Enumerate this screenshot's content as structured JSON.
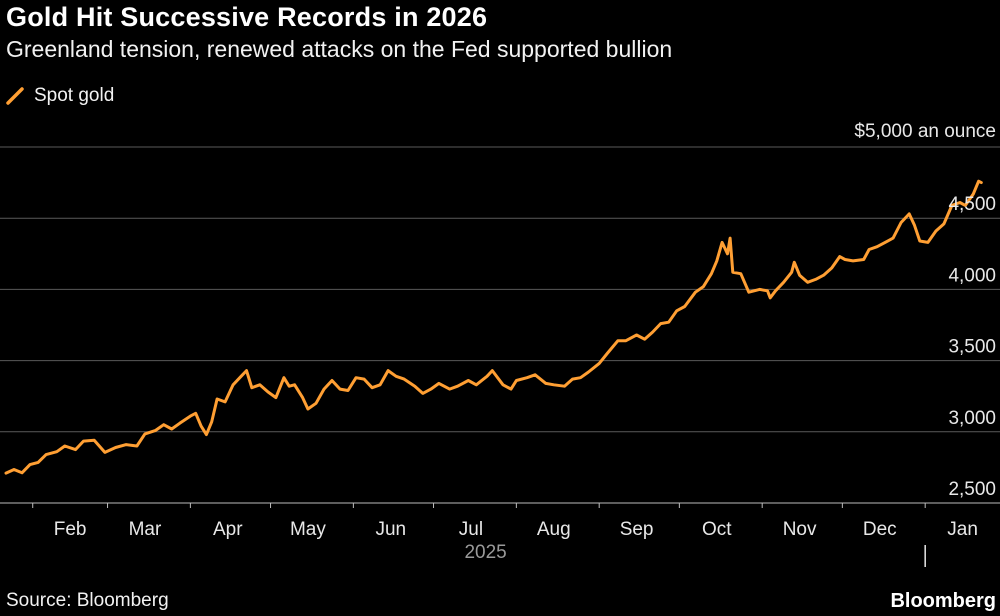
{
  "header": {
    "title": "Gold Hit Successive Records in 2026",
    "subtitle": "Greenland tension, renewed attacks on the Fed supported bullion"
  },
  "footer": {
    "source": "Source: Bloomberg",
    "brand": "Bloomberg"
  },
  "colors": {
    "background": "#000000",
    "series": "#ff9f33",
    "grid": "#5a5a5a",
    "text": "#ffffff"
  },
  "chart_data": {
    "type": "line",
    "title": "Gold Hit Successive Records in 2026",
    "subtitle": "Greenland tension, renewed attacks on the Fed supported bullion",
    "y_unit_label": "$5,000 an ounce",
    "ylim": [
      2500,
      5000
    ],
    "y_ticks": [
      2500,
      3000,
      3500,
      4000,
      4500,
      5000
    ],
    "y_tick_labels": [
      "2,500",
      "3,000",
      "3,500",
      "4,000",
      "4,500"
    ],
    "x_axis": {
      "type": "date",
      "range": [
        "2025-01-22",
        "2026-01-29"
      ],
      "month_ticks": [
        {
          "date": "2025-02-01",
          "label": "Feb"
        },
        {
          "date": "2025-03-01",
          "label": "Mar"
        },
        {
          "date": "2025-04-01",
          "label": "Apr"
        },
        {
          "date": "2025-05-01",
          "label": "May"
        },
        {
          "date": "2025-06-01",
          "label": "Jun"
        },
        {
          "date": "2025-07-01",
          "label": "Jul"
        },
        {
          "date": "2025-08-01",
          "label": "Aug"
        },
        {
          "date": "2025-09-01",
          "label": "Sep"
        },
        {
          "date": "2025-10-01",
          "label": "Oct"
        },
        {
          "date": "2025-11-01",
          "label": "Nov"
        },
        {
          "date": "2025-12-01",
          "label": "Dec"
        },
        {
          "date": "2026-01-01",
          "label": "Jan"
        }
      ],
      "year_label": "2025",
      "year_divider_date": "2026-01-01"
    },
    "grid": true,
    "legend": {
      "position": "top-left"
    },
    "series": [
      {
        "name": "Spot gold",
        "color": "#ff9f33",
        "points": [
          [
            "2025-01-22",
            2710
          ],
          [
            "2025-01-25",
            2735
          ],
          [
            "2025-01-28",
            2712
          ],
          [
            "2025-01-31",
            2770
          ],
          [
            "2025-02-03",
            2785
          ],
          [
            "2025-02-06",
            2840
          ],
          [
            "2025-02-10",
            2860
          ],
          [
            "2025-02-13",
            2900
          ],
          [
            "2025-02-17",
            2875
          ],
          [
            "2025-02-20",
            2935
          ],
          [
            "2025-02-24",
            2940
          ],
          [
            "2025-02-28",
            2855
          ],
          [
            "2025-03-04",
            2890
          ],
          [
            "2025-03-08",
            2910
          ],
          [
            "2025-03-12",
            2900
          ],
          [
            "2025-03-15",
            2985
          ],
          [
            "2025-03-19",
            3010
          ],
          [
            "2025-03-22",
            3050
          ],
          [
            "2025-03-25",
            3020
          ],
          [
            "2025-03-28",
            3060
          ],
          [
            "2025-04-01",
            3110
          ],
          [
            "2025-04-03",
            3130
          ],
          [
            "2025-04-05",
            3040
          ],
          [
            "2025-04-07",
            2980
          ],
          [
            "2025-04-09",
            3070
          ],
          [
            "2025-04-11",
            3230
          ],
          [
            "2025-04-14",
            3210
          ],
          [
            "2025-04-17",
            3330
          ],
          [
            "2025-04-20",
            3390
          ],
          [
            "2025-04-22",
            3430
          ],
          [
            "2025-04-24",
            3310
          ],
          [
            "2025-04-27",
            3330
          ],
          [
            "2025-04-30",
            3280
          ],
          [
            "2025-05-03",
            3240
          ],
          [
            "2025-05-06",
            3380
          ],
          [
            "2025-05-08",
            3320
          ],
          [
            "2025-05-10",
            3330
          ],
          [
            "2025-05-13",
            3240
          ],
          [
            "2025-05-15",
            3160
          ],
          [
            "2025-05-18",
            3200
          ],
          [
            "2025-05-21",
            3300
          ],
          [
            "2025-05-24",
            3360
          ],
          [
            "2025-05-27",
            3300
          ],
          [
            "2025-05-30",
            3290
          ],
          [
            "2025-06-02",
            3380
          ],
          [
            "2025-06-05",
            3370
          ],
          [
            "2025-06-08",
            3310
          ],
          [
            "2025-06-11",
            3330
          ],
          [
            "2025-06-14",
            3430
          ],
          [
            "2025-06-17",
            3390
          ],
          [
            "2025-06-20",
            3370
          ],
          [
            "2025-06-24",
            3320
          ],
          [
            "2025-06-27",
            3270
          ],
          [
            "2025-06-30",
            3300
          ],
          [
            "2025-07-03",
            3340
          ],
          [
            "2025-07-07",
            3300
          ],
          [
            "2025-07-10",
            3320
          ],
          [
            "2025-07-14",
            3360
          ],
          [
            "2025-07-17",
            3330
          ],
          [
            "2025-07-21",
            3390
          ],
          [
            "2025-07-23",
            3430
          ],
          [
            "2025-07-27",
            3330
          ],
          [
            "2025-07-30",
            3300
          ],
          [
            "2025-08-01",
            3360
          ],
          [
            "2025-08-05",
            3380
          ],
          [
            "2025-08-08",
            3400
          ],
          [
            "2025-08-12",
            3340
          ],
          [
            "2025-08-15",
            3330
          ],
          [
            "2025-08-19",
            3320
          ],
          [
            "2025-08-22",
            3370
          ],
          [
            "2025-08-25",
            3380
          ],
          [
            "2025-08-28",
            3420
          ],
          [
            "2025-09-01",
            3480
          ],
          [
            "2025-09-04",
            3550
          ],
          [
            "2025-09-08",
            3640
          ],
          [
            "2025-09-11",
            3640
          ],
          [
            "2025-09-15",
            3680
          ],
          [
            "2025-09-18",
            3650
          ],
          [
            "2025-09-21",
            3700
          ],
          [
            "2025-09-24",
            3760
          ],
          [
            "2025-09-27",
            3770
          ],
          [
            "2025-09-30",
            3850
          ],
          [
            "2025-10-03",
            3880
          ],
          [
            "2025-10-07",
            3980
          ],
          [
            "2025-10-10",
            4020
          ],
          [
            "2025-10-13",
            4110
          ],
          [
            "2025-10-15",
            4200
          ],
          [
            "2025-10-17",
            4330
          ],
          [
            "2025-10-19",
            4250
          ],
          [
            "2025-10-20",
            4360
          ],
          [
            "2025-10-21",
            4120
          ],
          [
            "2025-10-24",
            4110
          ],
          [
            "2025-10-27",
            3980
          ],
          [
            "2025-10-29",
            3990
          ],
          [
            "2025-10-31",
            4000
          ],
          [
            "2025-11-03",
            3990
          ],
          [
            "2025-11-04",
            3940
          ],
          [
            "2025-11-06",
            3990
          ],
          [
            "2025-11-09",
            4050
          ],
          [
            "2025-11-12",
            4120
          ],
          [
            "2025-11-13",
            4190
          ],
          [
            "2025-11-15",
            4100
          ],
          [
            "2025-11-18",
            4050
          ],
          [
            "2025-11-21",
            4070
          ],
          [
            "2025-11-24",
            4100
          ],
          [
            "2025-11-27",
            4150
          ],
          [
            "2025-11-30",
            4230
          ],
          [
            "2025-12-02",
            4210
          ],
          [
            "2025-12-05",
            4200
          ],
          [
            "2025-12-09",
            4210
          ],
          [
            "2025-12-11",
            4280
          ],
          [
            "2025-12-14",
            4300
          ],
          [
            "2025-12-17",
            4330
          ],
          [
            "2025-12-20",
            4360
          ],
          [
            "2025-12-23",
            4470
          ],
          [
            "2025-12-26",
            4530
          ],
          [
            "2025-12-28",
            4450
          ],
          [
            "2025-12-30",
            4340
          ],
          [
            "2026-01-02",
            4330
          ],
          [
            "2026-01-05",
            4410
          ],
          [
            "2026-01-08",
            4460
          ],
          [
            "2026-01-11",
            4590
          ],
          [
            "2026-01-14",
            4610
          ],
          [
            "2026-01-16",
            4590
          ],
          [
            "2026-01-19",
            4670
          ],
          [
            "2026-01-21",
            4760
          ],
          [
            "2026-01-22",
            4750
          ]
        ]
      }
    ]
  }
}
